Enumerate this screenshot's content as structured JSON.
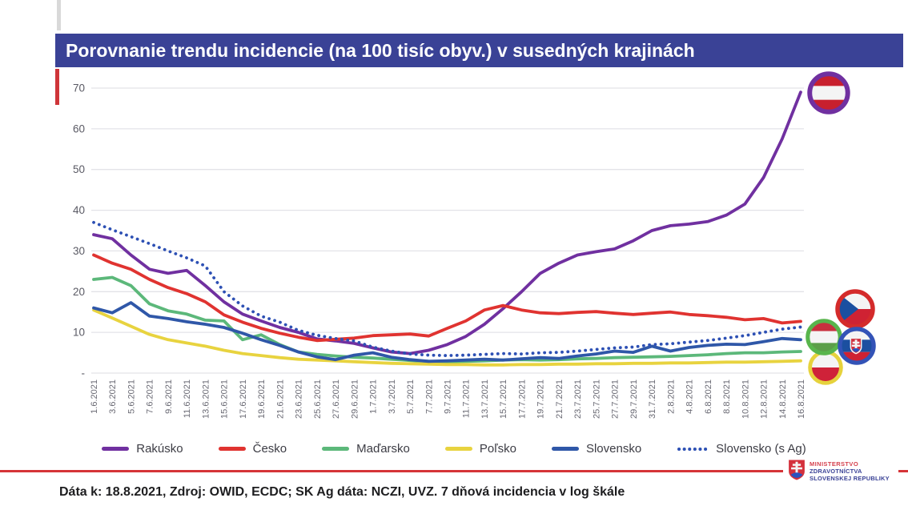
{
  "title": "Porovnanie trendu incidencie (na 100 tisíc obyv.) v susedných krajinách",
  "caption": "Dáta k: 18.8.2021, Zdroj: OWID, ECDC; SK Ag dáta: NCZI, UVZ. 7 dňová incidencia v log škále",
  "logo": {
    "line1": "MINISTERSTVO",
    "line2": "ZDRAVOTNÍCTVA",
    "line3": "SLOVENSKEJ REPUBLIKY"
  },
  "icons": [
    "flag-austria",
    "flag-czechia",
    "flag-hungary",
    "flag-slovakia",
    "flag-poland",
    "slovak-coat-of-arms"
  ],
  "colors": {
    "title_bar": "#3a4296",
    "accent_red": "#cf3539",
    "divider_red": "#d53438",
    "gridline": "#e3e3e8",
    "y_label": "#5a5a64",
    "x_label": "#6a6a74"
  },
  "chart_data": {
    "type": "line",
    "title": "Porovnanie trendu incidencie (na 100 tisíc obyv.) v susedných krajinách",
    "xlabel": "",
    "ylabel": "",
    "ylim": [
      0,
      73
    ],
    "yticks": [
      70,
      60,
      50,
      40,
      30,
      20,
      10
    ],
    "baseline_label": "-",
    "grid": "horizontal",
    "legend_position": "bottom",
    "x": [
      "1.6.2021",
      "3.6.2021",
      "5.6.2021",
      "7.6.2021",
      "9.6.2021",
      "11.6.2021",
      "13.6.2021",
      "15.6.2021",
      "17.6.2021",
      "19.6.2021",
      "21.6.2021",
      "23.6.2021",
      "25.6.2021",
      "27.6.2021",
      "29.6.2021",
      "1.7.2021",
      "3.7.2021",
      "5.7.2021",
      "7.7.2021",
      "9.7.2021",
      "11.7.2021",
      "13.7.2021",
      "15.7.2021",
      "17.7.2021",
      "19.7.2021",
      "21.7.2021",
      "23.7.2021",
      "25.7.2021",
      "27.7.2021",
      "29.7.2021",
      "31.7.2021",
      "2.8.2021",
      "4.8.2021",
      "6.8.2021",
      "8.8.2021",
      "10.8.2021",
      "12.8.2021",
      "14.8.2021",
      "16.8.2021"
    ],
    "series": [
      {
        "name": "Rakúsko",
        "color": "#7030a0",
        "style": "solid",
        "values": [
          34,
          33,
          29,
          25.5,
          24.5,
          25.2,
          21.5,
          17.5,
          14.5,
          12.8,
          11.2,
          10,
          8.4,
          7.9,
          7.3,
          6.2,
          5.2,
          4.8,
          5.6,
          7,
          9,
          12,
          15.8,
          20,
          24.5,
          27,
          29,
          29.8,
          30.5,
          32.5,
          35,
          36.2,
          36.6,
          37.2,
          38.8,
          41.5,
          48,
          57.5,
          69
        ]
      },
      {
        "name": "Česko",
        "color": "#e03330",
        "style": "solid",
        "values": [
          29,
          27,
          25.5,
          23,
          21,
          19.5,
          17.5,
          14.3,
          12.5,
          11,
          9.8,
          8.8,
          8,
          8.3,
          8.6,
          9.2,
          9.4,
          9.6,
          9.1,
          11,
          12.8,
          15.5,
          16.6,
          15.5,
          14.8,
          14.6,
          14.9,
          15.1,
          14.7,
          14.4,
          14.7,
          15,
          14.4,
          14.1,
          13.7,
          13.1,
          13.4,
          12.3,
          12.7
        ]
      },
      {
        "name": "Maďarsko",
        "color": "#5cb87a",
        "style": "solid",
        "values": [
          23,
          23.5,
          21.5,
          17,
          15.3,
          14.5,
          13,
          12.8,
          8.2,
          9.4,
          7,
          5.2,
          4.6,
          4.2,
          3.9,
          3.7,
          3.4,
          3.1,
          2.9,
          2.8,
          2.9,
          3,
          3.2,
          3.3,
          3.2,
          3.3,
          3.5,
          3.6,
          3.8,
          3.9,
          4,
          4.1,
          4.3,
          4.5,
          4.8,
          5,
          5,
          5.2,
          5.3
        ]
      },
      {
        "name": "Poľsko",
        "color": "#e8d33f",
        "style": "solid",
        "values": [
          15.5,
          13.5,
          11.5,
          9.5,
          8.2,
          7.4,
          6.6,
          5.6,
          4.8,
          4.3,
          3.8,
          3.4,
          3.2,
          3,
          2.8,
          2.6,
          2.4,
          2.3,
          2.2,
          2.1,
          2.1,
          2,
          2,
          2.1,
          2.1,
          2.2,
          2.2,
          2.3,
          2.3,
          2.4,
          2.4,
          2.5,
          2.5,
          2.6,
          2.7,
          2.7,
          2.8,
          2.9,
          3
        ]
      },
      {
        "name": "Slovensko",
        "color": "#2f57a8",
        "style": "solid",
        "values": [
          16,
          14.8,
          17.3,
          14,
          13.4,
          12.6,
          12,
          11.2,
          9.8,
          8.2,
          6.8,
          5.2,
          4,
          3.3,
          4.4,
          5,
          3.9,
          3.3,
          2.9,
          3,
          3.2,
          3.4,
          3.2,
          3.5,
          3.8,
          3.6,
          4.2,
          4.7,
          5.4,
          5.1,
          6.6,
          5.4,
          6.3,
          6.8,
          7.1,
          7,
          7.7,
          8.5,
          8.2
        ]
      },
      {
        "name": "Slovensko (s Ag)",
        "color": "#2d50b4",
        "style": "dotted",
        "values": [
          37,
          35.2,
          33.5,
          31.8,
          30,
          28.3,
          26.3,
          20,
          16.5,
          14,
          12.5,
          10.5,
          9.3,
          8.5,
          7.9,
          6.4,
          5.4,
          4.7,
          4.4,
          4.3,
          4.4,
          4.6,
          4.8,
          4.7,
          5,
          5.1,
          5.4,
          5.8,
          6.2,
          6.4,
          7,
          7.2,
          7.6,
          8,
          8.6,
          9.2,
          10,
          10.8,
          11.3
        ]
      }
    ],
    "flags": [
      {
        "country": "Rakúsko",
        "ring": "#7030a0",
        "position": "top-right"
      },
      {
        "country": "Česko",
        "ring": "#d42b2b",
        "position": "right-cluster"
      },
      {
        "country": "Maďarsko",
        "ring": "#58b54c",
        "position": "right-cluster"
      },
      {
        "country": "Slovensko",
        "ring": "#3353b7",
        "position": "right-cluster"
      },
      {
        "country": "Poľsko",
        "ring": "#e6d23c",
        "position": "right-cluster"
      }
    ]
  }
}
